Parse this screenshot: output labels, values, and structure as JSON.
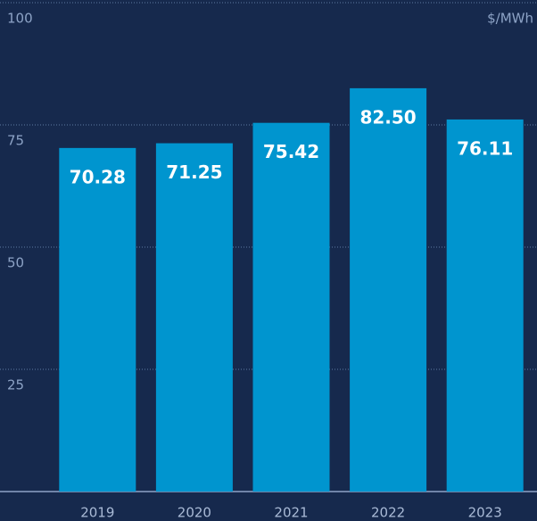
{
  "chart_data": {
    "type": "bar",
    "y_axis_label": "$/MWh",
    "categories": [
      "2019",
      "2020",
      "2021",
      "2022",
      "2023"
    ],
    "values": [
      70.28,
      71.25,
      75.42,
      82.5,
      76.11
    ],
    "value_labels": [
      "70.28",
      "71.25",
      "75.42",
      "82.50",
      "76.11"
    ],
    "color": "#0095cf",
    "ylim": [
      0,
      100
    ],
    "yticks": [
      25,
      50,
      75,
      100
    ],
    "grid": true
  }
}
